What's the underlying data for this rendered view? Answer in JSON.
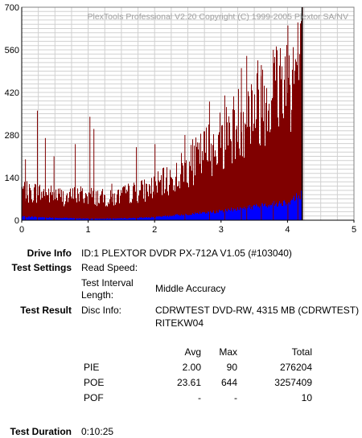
{
  "chart_data": {
    "type": "area",
    "watermark": "PlexTools Professional V2.20 Copyright (C) 1999-2005 Plextor SA/NV",
    "xlim": [
      0,
      5
    ],
    "ylim": [
      0,
      700
    ],
    "x_ticks": [
      "0",
      "1",
      "2",
      "3",
      "4",
      "5"
    ],
    "y_ticks": [
      "0",
      "140",
      "280",
      "420",
      "560",
      "700"
    ],
    "grid": true,
    "end_x": 4.22,
    "series": [
      {
        "color": "#800000",
        "x": [
          0,
          0.1,
          0.2,
          0.3,
          0.4,
          0.5,
          0.6,
          0.7,
          0.8,
          0.9,
          1.0,
          1.1,
          1.2,
          1.3,
          1.4,
          1.5,
          1.6,
          1.7,
          1.8,
          1.9,
          2.0,
          2.1,
          2.2,
          2.3,
          2.4,
          2.5,
          2.6,
          2.7,
          2.8,
          2.9,
          3.0,
          3.1,
          3.2,
          3.3,
          3.4,
          3.5,
          3.6,
          3.7,
          3.8,
          3.9,
          4.0,
          4.1,
          4.2
        ],
        "values": [
          110,
          95,
          100,
          95,
          92,
          90,
          85,
          80,
          90,
          90,
          88,
          85,
          80,
          75,
          80,
          88,
          95,
          100,
          105,
          110,
          120,
          130,
          140,
          150,
          175,
          195,
          210,
          230,
          255,
          270,
          290,
          310,
          330,
          360,
          385,
          410,
          430,
          455,
          475,
          500,
          515,
          530,
          545
        ],
        "peaks": [
          {
            "x": 0.05,
            "y": 200
          },
          {
            "x": 0.23,
            "y": 360
          },
          {
            "x": 0.35,
            "y": 270
          },
          {
            "x": 0.48,
            "y": 210
          },
          {
            "x": 0.8,
            "y": 250
          },
          {
            "x": 1.02,
            "y": 340
          },
          {
            "x": 1.08,
            "y": 300
          },
          {
            "x": 1.35,
            "y": 120
          },
          {
            "x": 1.72,
            "y": 240
          },
          {
            "x": 2.0,
            "y": 250
          },
          {
            "x": 2.45,
            "y": 280
          },
          {
            "x": 2.82,
            "y": 390
          },
          {
            "x": 3.05,
            "y": 410
          },
          {
            "x": 3.3,
            "y": 500
          },
          {
            "x": 3.38,
            "y": 540
          },
          {
            "x": 3.6,
            "y": 510
          },
          {
            "x": 3.78,
            "y": 560
          },
          {
            "x": 4.0,
            "y": 640
          },
          {
            "x": 4.15,
            "y": 650
          },
          {
            "x": 4.22,
            "y": 700
          }
        ]
      },
      {
        "color": "#0000ff",
        "x": [
          0,
          0.5,
          1.0,
          1.5,
          2.0,
          2.5,
          3.0,
          3.5,
          4.0,
          4.2
        ],
        "values": [
          12,
          8,
          5,
          6,
          10,
          20,
          30,
          45,
          60,
          85
        ]
      }
    ]
  },
  "info": {
    "drive_info_label": "Drive Info",
    "drive_info_value": "ID:1 PLEXTOR DVDR PX-712A V1.05 (#103040)",
    "test_settings_label": "Test Settings",
    "read_speed_label": "Read Speed:",
    "test_interval_label_1": "Test Interval",
    "test_interval_label_2": "Length:",
    "test_interval_value": "Middle Accuracy",
    "test_result_label": "Test Result",
    "disc_info_label": "Disc Info:",
    "disc_info_value_1": "CDRWTEST DVD-RW, 4315 MB (CDRWTEST)",
    "disc_info_value_2": "RITEKW04",
    "test_duration_label": "Test Duration",
    "test_duration_value": "0:10:25"
  },
  "stats": {
    "headers": {
      "avg": "Avg",
      "max": "Max",
      "total": "Total"
    },
    "rows": [
      {
        "name": "PIE",
        "avg": "2.00",
        "max": "90",
        "total": "276204"
      },
      {
        "name": "POE",
        "avg": "23.61",
        "max": "644",
        "total": "3257409"
      },
      {
        "name": "POF",
        "avg": "-",
        "max": "-",
        "total": "10"
      }
    ]
  }
}
